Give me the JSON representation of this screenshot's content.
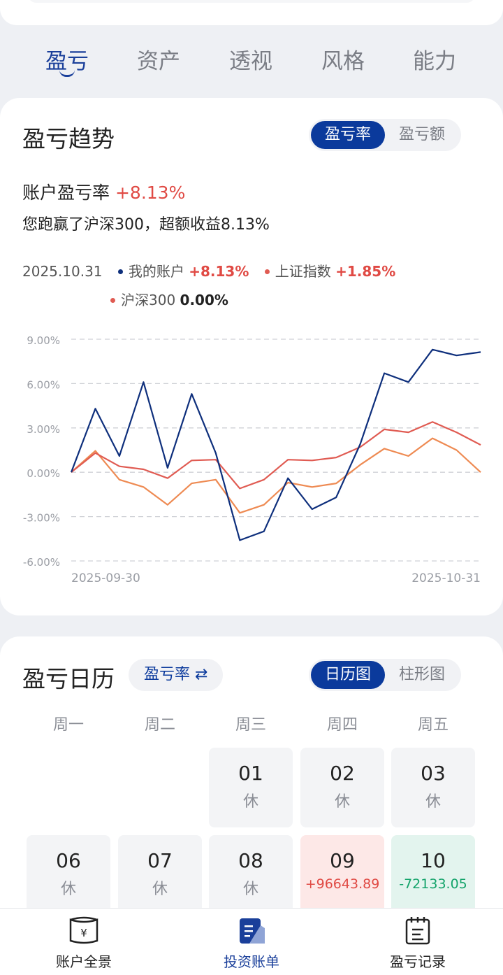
{
  "tabs": [
    "盈亏",
    "资产",
    "透视",
    "风格",
    "能力"
  ],
  "trend": {
    "title": "盈亏趋势",
    "toggle": [
      "盈亏率",
      "盈亏额"
    ],
    "rate_label": "账户盈亏率",
    "rate_value": "+8.13%",
    "beat_text": "您跑赢了沪深300，超额收益8.13%",
    "legend_date": "2025.10.31",
    "legend": [
      {
        "name": "我的账户",
        "value": "+8.13%",
        "color": "#0e2f7c",
        "value_color": "#e04a44"
      },
      {
        "name": "上证指数",
        "value": "+1.85%",
        "color": "#e05b52",
        "value_color": "#e04a44"
      },
      {
        "name": "沪深300",
        "value": "0.00%",
        "color": "#e05b52",
        "value_color": "#222222"
      }
    ]
  },
  "chart_data": {
    "type": "line",
    "y_ticks": [
      "9.00%",
      "6.00%",
      "3.00%",
      "0.00%",
      "-3.00%",
      "-6.00%"
    ],
    "ylim": [
      -6,
      9
    ],
    "x_start_label": "2025-09-30",
    "x_end_label": "2025-10-31",
    "grid": true,
    "series": [
      {
        "name": "我的账户",
        "color": "#0e2f7c",
        "values": [
          0.0,
          4.3,
          1.1,
          6.1,
          0.3,
          5.3,
          1.3,
          -4.6,
          -4.0,
          -0.4,
          -2.5,
          -1.7,
          1.9,
          6.7,
          6.1,
          8.3,
          7.9,
          8.13
        ]
      },
      {
        "name": "上证指数",
        "color": "#e05b52",
        "values": [
          0.0,
          1.3,
          0.4,
          0.2,
          -0.4,
          0.8,
          0.85,
          -1.1,
          -0.5,
          0.85,
          0.8,
          1.0,
          1.7,
          2.9,
          2.7,
          3.4,
          2.7,
          1.85
        ]
      },
      {
        "name": "沪深300",
        "color": "#ee8a52",
        "values": [
          0.0,
          1.45,
          -0.5,
          -1.0,
          -2.2,
          -0.75,
          -0.5,
          -2.75,
          -2.2,
          -0.7,
          -1.0,
          -0.75,
          0.5,
          1.6,
          1.1,
          2.3,
          1.5,
          0.0
        ]
      }
    ]
  },
  "calendar": {
    "title": "盈亏日历",
    "filter": "盈亏率 ⇄",
    "toggle": [
      "日历图",
      "柱形图"
    ],
    "weekdays": [
      "周一",
      "周二",
      "周三",
      "周四",
      "周五"
    ],
    "days": [
      {
        "num": "01",
        "sub": "休"
      },
      {
        "num": "02",
        "sub": "休"
      },
      {
        "num": "03",
        "sub": "休"
      },
      {
        "num": "06",
        "sub": "休"
      },
      {
        "num": "07",
        "sub": "休"
      },
      {
        "num": "08",
        "sub": "休"
      },
      {
        "num": "09",
        "sub": "+96643.89"
      },
      {
        "num": "10",
        "sub": "-72133.05"
      }
    ]
  },
  "nav": [
    {
      "label": "账户全景",
      "icon": "wallet-icon"
    },
    {
      "label": "投资账单",
      "icon": "document-icon"
    },
    {
      "label": "盈亏记录",
      "icon": "clipboard-icon"
    }
  ]
}
